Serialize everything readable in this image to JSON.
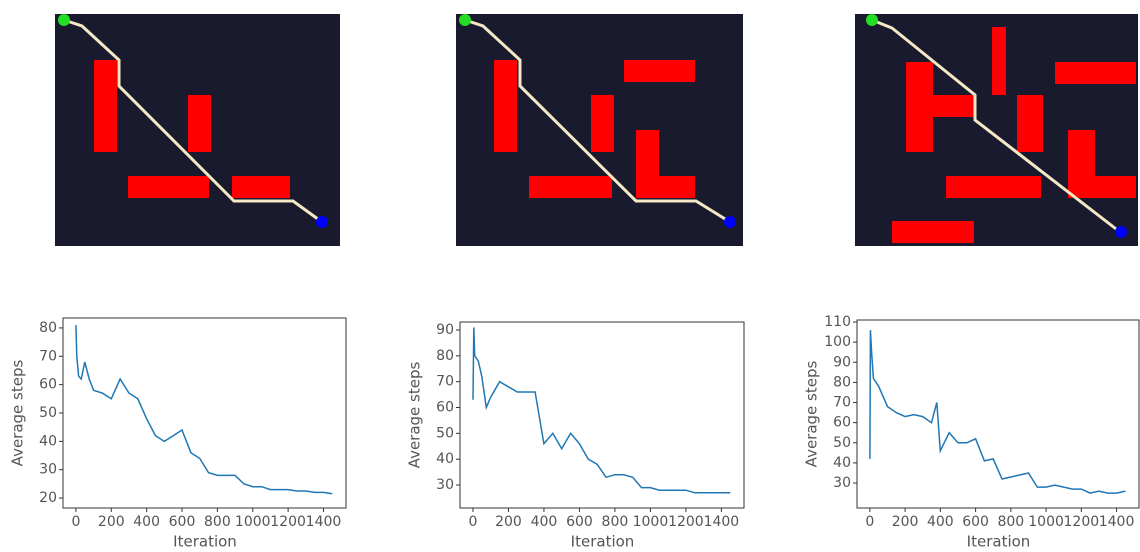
{
  "chart_data": [
    {
      "type": "line",
      "x_label": "Iteration",
      "y_label": "Average steps",
      "x": [
        0,
        5,
        15,
        30,
        50,
        75,
        100,
        150,
        200,
        250,
        300,
        350,
        400,
        450,
        500,
        550,
        600,
        650,
        700,
        750,
        800,
        850,
        900,
        950,
        1000,
        1050,
        1100,
        1150,
        1200,
        1250,
        1300,
        1350,
        1400,
        1450
      ],
      "series": [
        {
          "color": "#1f77b4",
          "values": [
            81,
            70,
            63,
            62,
            68,
            62,
            58,
            57,
            55,
            62,
            57,
            55,
            48,
            42,
            40,
            42,
            44,
            36,
            34,
            29,
            28,
            28,
            28,
            25,
            24,
            24,
            23,
            23,
            23,
            22.5,
            22.5,
            22,
            22,
            21.5
          ]
        }
      ],
      "xlim": [
        -73,
        1533
      ],
      "ylim": [
        16.5,
        83.5
      ],
      "xticks": [
        0,
        200,
        400,
        600,
        800,
        1000,
        1200,
        1400
      ],
      "yticks": [
        20,
        30,
        40,
        50,
        60,
        70,
        80
      ]
    },
    {
      "type": "line",
      "x_label": "Iteration",
      "y_label": "Average steps",
      "x": [
        0,
        5,
        10,
        30,
        50,
        75,
        100,
        150,
        200,
        250,
        300,
        350,
        400,
        450,
        500,
        550,
        600,
        650,
        700,
        750,
        800,
        850,
        900,
        950,
        1000,
        1050,
        1100,
        1150,
        1200,
        1250,
        1300,
        1350,
        1400,
        1450
      ],
      "series": [
        {
          "color": "#1f77b4",
          "values": [
            63,
            91,
            80,
            78,
            72,
            60,
            64,
            70,
            68,
            66,
            66,
            66,
            46,
            50,
            44,
            50,
            46,
            40,
            38,
            33,
            34,
            34,
            33,
            29,
            29,
            28,
            28,
            28,
            28,
            27,
            27,
            27,
            27,
            27
          ]
        }
      ],
      "xlim": [
        -73,
        1533
      ],
      "ylim": [
        21.1,
        93.1
      ],
      "xticks": [
        0,
        200,
        400,
        600,
        800,
        1000,
        1200,
        1400
      ],
      "yticks": [
        30,
        40,
        50,
        60,
        70,
        80,
        90
      ]
    },
    {
      "type": "line",
      "x_label": "Iteration",
      "y_label": "Average steps",
      "x": [
        0,
        3,
        10,
        20,
        50,
        100,
        150,
        200,
        250,
        300,
        350,
        380,
        400,
        450,
        500,
        550,
        600,
        650,
        700,
        750,
        800,
        850,
        900,
        950,
        1000,
        1050,
        1100,
        1150,
        1200,
        1250,
        1300,
        1350,
        1400,
        1450
      ],
      "series": [
        {
          "color": "#1f77b4",
          "values": [
            42,
            106,
            95,
            82,
            78,
            68,
            65,
            63,
            64,
            63,
            60,
            70,
            46,
            55,
            50,
            50,
            52,
            41,
            42,
            32,
            33,
            34,
            35,
            28,
            28,
            29,
            28,
            27,
            27,
            25,
            26,
            25,
            25,
            26
          ]
        }
      ],
      "xlim": [
        -73,
        1533
      ],
      "ylim": [
        17.6,
        111
      ],
      "xticks": [
        0,
        200,
        400,
        600,
        800,
        1000,
        1200,
        1400
      ],
      "yticks": [
        30,
        40,
        50,
        60,
        70,
        80,
        90,
        100,
        110
      ]
    }
  ]
}
